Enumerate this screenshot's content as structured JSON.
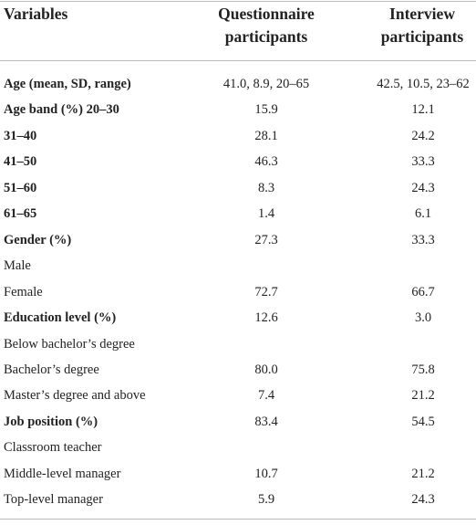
{
  "table": {
    "header": [
      "Variables",
      "Questionnaire participants",
      "Interview participants"
    ],
    "rows": [
      {
        "label": "Age (mean, SD, range)",
        "bold": true,
        "values": [
          "41.0, 8.9, 20–65",
          "42.5, 10.5, 23–62"
        ]
      },
      {
        "label": "Age band (%) 20–30",
        "bold": true,
        "values": [
          "15.9",
          "12.1"
        ]
      },
      {
        "label": "31–40",
        "bold": true,
        "values": [
          "28.1",
          "24.2"
        ]
      },
      {
        "label": "41–50",
        "bold": true,
        "values": [
          "46.3",
          "33.3"
        ]
      },
      {
        "label": "51–60",
        "bold": true,
        "values": [
          "8.3",
          "24.3"
        ]
      },
      {
        "label": "61–65",
        "bold": true,
        "values": [
          "1.4",
          "6.1"
        ]
      },
      {
        "label": "Gender (%)",
        "bold": true,
        "values": [
          "27.3",
          "33.3"
        ]
      },
      {
        "label": "Male",
        "bold": false,
        "values": [
          null,
          null
        ]
      },
      {
        "label": "Female",
        "bold": false,
        "values": [
          "72.7",
          "66.7"
        ]
      },
      {
        "label": "Education level (%)",
        "bold": true,
        "values": [
          "12.6",
          "3.0"
        ]
      },
      {
        "label": "Below bachelor’s degree",
        "bold": false,
        "values": [
          null,
          null
        ]
      },
      {
        "label": "Bachelor’s degree",
        "bold": false,
        "values": [
          "80.0",
          "75.8"
        ]
      },
      {
        "label": "Master’s degree and above",
        "bold": false,
        "values": [
          "7.4",
          "21.2"
        ]
      },
      {
        "label": "Job position (%)",
        "bold": true,
        "values": [
          "83.4",
          "54.5"
        ]
      },
      {
        "label": "Classroom teacher",
        "bold": false,
        "values": [
          null,
          null
        ]
      },
      {
        "label": "Middle-level manager",
        "bold": false,
        "values": [
          "10.7",
          "21.2"
        ]
      },
      {
        "label": "Top-level manager",
        "bold": false,
        "values": [
          "5.9",
          "24.3"
        ]
      }
    ]
  }
}
